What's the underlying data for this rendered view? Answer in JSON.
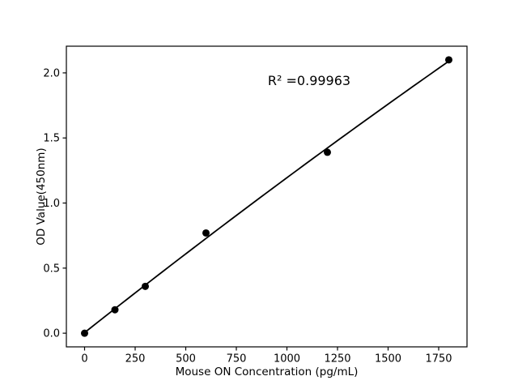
{
  "figure": {
    "background": "#ffffff",
    "foreground": "#000000"
  },
  "chart_data": {
    "type": "scatter",
    "title": "",
    "xlabel": "Mouse ON Concentration (pg/mL)",
    "ylabel": "OD Value(450nm)",
    "x": [
      0,
      150,
      300,
      600,
      1200,
      1800
    ],
    "y": [
      0.0,
      0.18,
      0.36,
      0.77,
      1.39,
      2.1
    ],
    "xlim": [
      -90,
      1890
    ],
    "ylim": [
      -0.105,
      2.205
    ],
    "xticks": [
      0,
      250,
      500,
      750,
      1000,
      1250,
      1500,
      1750
    ],
    "xtick_labels": [
      "0",
      "250",
      "500",
      "750",
      "1000",
      "1250",
      "1500",
      "1750"
    ],
    "yticks": [
      0.0,
      0.5,
      1.0,
      1.5,
      2.0
    ],
    "ytick_labels": [
      "0.0",
      "0.5",
      "1.0",
      "1.5",
      "2.0"
    ],
    "grid": false,
    "legend": "none",
    "marker_color": "#000000",
    "marker_size_px": 4.5,
    "line_color": "#000000",
    "fit_line": {
      "type": "quadratic",
      "coefficients": {
        "a": 0.00441,
        "b": 0.0012299,
        "c": -3.97e-08
      },
      "x_range": [
        0,
        1800
      ]
    },
    "annotation": {
      "text": "R² =0.99963",
      "x": 1110,
      "y": 1.94
    }
  }
}
